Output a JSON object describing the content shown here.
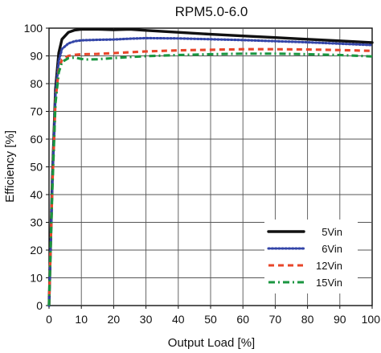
{
  "chart_data": {
    "type": "line",
    "title": "RPM5.0-6.0",
    "xlabel": "Output Load [%]",
    "ylabel": "Efficiency [%]",
    "xlim": [
      0,
      100
    ],
    "ylim": [
      0,
      100
    ],
    "xticks": [
      0,
      10,
      20,
      30,
      40,
      50,
      60,
      70,
      80,
      90,
      100
    ],
    "yticks": [
      0,
      10,
      20,
      30,
      40,
      50,
      60,
      70,
      80,
      90,
      100
    ],
    "grid": true,
    "legend_position": "bottom-right",
    "series": [
      {
        "name": "5Vin",
        "color": "#111111",
        "dash": "solid",
        "points": [
          [
            0,
            0
          ],
          [
            1,
            45
          ],
          [
            2,
            78
          ],
          [
            3,
            91
          ],
          [
            4,
            96
          ],
          [
            6,
            98.5
          ],
          [
            8,
            99.3
          ],
          [
            10,
            99.6
          ],
          [
            15,
            99.6
          ],
          [
            20,
            99.4
          ],
          [
            25,
            99.6
          ],
          [
            30,
            99.2
          ],
          [
            40,
            98.5
          ],
          [
            50,
            97.8
          ],
          [
            60,
            97.2
          ],
          [
            70,
            96.6
          ],
          [
            80,
            96
          ],
          [
            90,
            95.4
          ],
          [
            100,
            94.8
          ]
        ]
      },
      {
        "name": "6Vin",
        "color": "#3345a8",
        "dash": "dotted",
        "points": [
          [
            0,
            0
          ],
          [
            1,
            43
          ],
          [
            2,
            76
          ],
          [
            3,
            88
          ],
          [
            4,
            92.5
          ],
          [
            6,
            94.5
          ],
          [
            8,
            95.3
          ],
          [
            10,
            95.6
          ],
          [
            15,
            95.8
          ],
          [
            20,
            95.9
          ],
          [
            25,
            96.2
          ],
          [
            30,
            96.4
          ],
          [
            40,
            96.3
          ],
          [
            50,
            96
          ],
          [
            60,
            95.7
          ],
          [
            70,
            95.3
          ],
          [
            80,
            94.9
          ],
          [
            90,
            94.4
          ],
          [
            100,
            93.9
          ]
        ]
      },
      {
        "name": "12Vin",
        "color": "#e8462a",
        "dash": "dashed",
        "points": [
          [
            0,
            0
          ],
          [
            1,
            42
          ],
          [
            2,
            74
          ],
          [
            3,
            85
          ],
          [
            4,
            88.6
          ],
          [
            6,
            90
          ],
          [
            8,
            90.4
          ],
          [
            10,
            90.6
          ],
          [
            15,
            90.7
          ],
          [
            20,
            91
          ],
          [
            25,
            91.3
          ],
          [
            30,
            91.6
          ],
          [
            40,
            92
          ],
          [
            50,
            92.2
          ],
          [
            60,
            92.4
          ],
          [
            70,
            92.4
          ],
          [
            80,
            92.3
          ],
          [
            90,
            92.1
          ],
          [
            100,
            91.8
          ]
        ]
      },
      {
        "name": "15Vin",
        "color": "#1a9640",
        "dash": "dashdot",
        "points": [
          [
            0,
            0
          ],
          [
            1,
            41
          ],
          [
            2,
            73
          ],
          [
            3,
            84
          ],
          [
            4,
            87.8
          ],
          [
            6,
            89.2
          ],
          [
            8,
            89.4
          ],
          [
            10,
            88.9
          ],
          [
            12,
            88.7
          ],
          [
            15,
            88.8
          ],
          [
            20,
            89.2
          ],
          [
            25,
            89.6
          ],
          [
            30,
            89.9
          ],
          [
            40,
            90.3
          ],
          [
            50,
            90.6
          ],
          [
            60,
            90.8
          ],
          [
            70,
            90.8
          ],
          [
            80,
            90.6
          ],
          [
            90,
            90.3
          ],
          [
            100,
            89.8
          ]
        ]
      }
    ]
  }
}
